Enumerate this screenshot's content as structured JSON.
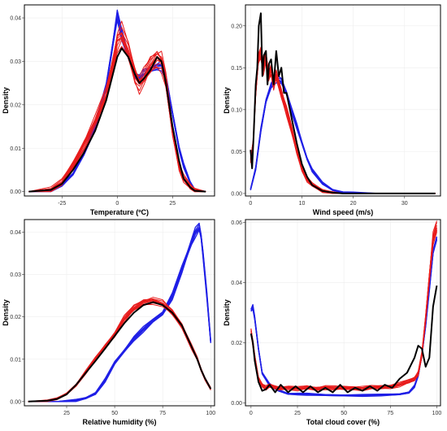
{
  "colors": {
    "blue": "#1f1fe6",
    "red": "#e81c1c",
    "black": "#000000"
  },
  "chart_data": [
    {
      "type": "line",
      "xlabel": "Temperature (ºC)",
      "ylabel": "Density",
      "xlim": [
        -42,
        44
      ],
      "ylim": [
        -0.001,
        0.043
      ],
      "xticks": [
        -25,
        0,
        25
      ],
      "yticks": [
        0.0,
        0.01,
        0.02,
        0.03,
        0.04
      ],
      "ytick_labels": [
        "0.00",
        "0.01",
        "0.02",
        "0.03",
        "0.04"
      ],
      "series": [
        {
          "color": "blue",
          "count": 6,
          "spread": 0.0012,
          "x": [
            -40,
            -30,
            -25,
            -20,
            -15,
            -10,
            -5,
            -2,
            0,
            2,
            5,
            8,
            10,
            12,
            15,
            18,
            20,
            22,
            25,
            28,
            30,
            33,
            35,
            40
          ],
          "y": [
            0,
            0.0003,
            0.0015,
            0.004,
            0.009,
            0.015,
            0.024,
            0.034,
            0.041,
            0.036,
            0.031,
            0.027,
            0.026,
            0.027,
            0.028,
            0.029,
            0.029,
            0.026,
            0.018,
            0.01,
            0.006,
            0.002,
            0.0005,
            0
          ]
        },
        {
          "color": "red",
          "count": 12,
          "spread": 0.0025,
          "x": [
            -40,
            -30,
            -25,
            -20,
            -15,
            -10,
            -5,
            -2,
            0,
            2,
            5,
            8,
            10,
            12,
            15,
            18,
            20,
            22,
            25,
            28,
            30,
            33,
            35,
            40
          ],
          "y": [
            0,
            0.0005,
            0.002,
            0.006,
            0.011,
            0.016,
            0.022,
            0.029,
            0.035,
            0.036,
            0.032,
            0.027,
            0.025,
            0.026,
            0.029,
            0.031,
            0.03,
            0.025,
            0.014,
            0.006,
            0.003,
            0.001,
            0.0003,
            0
          ]
        },
        {
          "color": "black",
          "count": 1,
          "spread": 0,
          "x": [
            -40,
            -30,
            -25,
            -20,
            -15,
            -10,
            -5,
            -2,
            0,
            2,
            5,
            8,
            10,
            12,
            15,
            18,
            20,
            22,
            25,
            28,
            30,
            33,
            35,
            40
          ],
          "y": [
            0,
            0.0004,
            0.0018,
            0.005,
            0.009,
            0.014,
            0.021,
            0.027,
            0.031,
            0.033,
            0.031,
            0.027,
            0.025,
            0.026,
            0.028,
            0.031,
            0.03,
            0.025,
            0.015,
            0.007,
            0.003,
            0.001,
            0.0002,
            0
          ]
        }
      ]
    },
    {
      "type": "line",
      "xlabel": "Wind speed (m/s)",
      "ylabel": "Density",
      "xlim": [
        -1,
        37
      ],
      "ylim": [
        -0.003,
        0.225
      ],
      "xticks": [
        0,
        10,
        20,
        30
      ],
      "yticks": [
        0.0,
        0.05,
        0.1,
        0.15,
        0.2
      ],
      "ytick_labels": [
        "0.00",
        "0.05",
        "0.10",
        "0.15",
        "0.20"
      ],
      "series": [
        {
          "color": "blue",
          "count": 6,
          "spread": 0.004,
          "x": [
            0,
            1,
            2,
            3,
            4,
            5,
            6,
            7,
            8,
            9,
            10,
            11,
            12,
            14,
            16,
            18,
            20,
            25,
            30,
            36
          ],
          "y": [
            0.005,
            0.03,
            0.075,
            0.11,
            0.13,
            0.137,
            0.133,
            0.12,
            0.1,
            0.08,
            0.06,
            0.042,
            0.028,
            0.012,
            0.004,
            0.0015,
            0.0005,
            0,
            0,
            0
          ]
        },
        {
          "color": "red",
          "count": 12,
          "spread": 0.008,
          "x": [
            0,
            0.5,
            1,
            1.5,
            2,
            2.5,
            3,
            3.5,
            4,
            4.5,
            5,
            6,
            7,
            8,
            9,
            10,
            11,
            12,
            14,
            16,
            18,
            20,
            25,
            30,
            36
          ],
          "y": [
            0.04,
            0.06,
            0.12,
            0.16,
            0.17,
            0.15,
            0.16,
            0.14,
            0.15,
            0.13,
            0.14,
            0.12,
            0.1,
            0.075,
            0.05,
            0.03,
            0.017,
            0.01,
            0.003,
            0.001,
            0,
            0,
            0,
            0,
            0
          ]
        },
        {
          "color": "black",
          "count": 1,
          "spread": 0,
          "x": [
            0,
            0.3,
            0.6,
            1,
            1.3,
            1.6,
            2,
            2.3,
            2.6,
            3,
            3.3,
            3.6,
            4,
            4.5,
            5,
            5.5,
            6,
            6.5,
            7,
            8,
            9,
            10,
            11,
            12,
            14,
            16,
            18,
            20,
            25,
            30,
            36
          ],
          "y": [
            0.052,
            0.03,
            0.07,
            0.13,
            0.15,
            0.2,
            0.215,
            0.14,
            0.165,
            0.17,
            0.13,
            0.155,
            0.16,
            0.13,
            0.17,
            0.14,
            0.15,
            0.12,
            0.12,
            0.09,
            0.06,
            0.035,
            0.02,
            0.01,
            0.003,
            0.001,
            0,
            0,
            0,
            0,
            0
          ]
        }
      ]
    },
    {
      "type": "line",
      "xlabel": "Relative humidity (%)",
      "ylabel": "Density",
      "xlim": [
        3,
        102
      ],
      "ylim": [
        -0.001,
        0.043
      ],
      "xticks": [
        25,
        50,
        75,
        100
      ],
      "yticks": [
        0.0,
        0.01,
        0.02,
        0.03,
        0.04
      ],
      "ytick_labels": [
        "0.00",
        "0.01",
        "0.02",
        "0.03",
        "0.04"
      ],
      "series": [
        {
          "color": "blue",
          "count": 6,
          "spread": 0.001,
          "x": [
            5,
            20,
            30,
            35,
            40,
            45,
            50,
            55,
            60,
            65,
            70,
            75,
            80,
            85,
            88,
            90,
            92,
            94,
            95,
            96,
            98,
            100
          ],
          "y": [
            0,
            0,
            0.0002,
            0.0008,
            0.002,
            0.005,
            0.009,
            0.012,
            0.015,
            0.017,
            0.019,
            0.021,
            0.025,
            0.031,
            0.035,
            0.038,
            0.04,
            0.041,
            0.039,
            0.035,
            0.025,
            0.014
          ]
        },
        {
          "color": "red",
          "count": 12,
          "spread": 0.0008,
          "x": [
            5,
            15,
            20,
            25,
            30,
            35,
            40,
            45,
            50,
            55,
            60,
            65,
            70,
            75,
            80,
            85,
            90,
            93,
            95,
            97,
            100
          ],
          "y": [
            0,
            0.0002,
            0.0006,
            0.0018,
            0.004,
            0.007,
            0.01,
            0.013,
            0.016,
            0.0195,
            0.022,
            0.0235,
            0.024,
            0.023,
            0.021,
            0.018,
            0.013,
            0.01,
            0.0075,
            0.0055,
            0.003
          ]
        },
        {
          "color": "black",
          "count": 1,
          "spread": 0,
          "x": [
            5,
            15,
            20,
            25,
            30,
            35,
            40,
            45,
            50,
            55,
            60,
            65,
            70,
            75,
            80,
            85,
            90,
            93,
            95,
            97,
            100
          ],
          "y": [
            0,
            0.0002,
            0.0006,
            0.0017,
            0.004,
            0.0068,
            0.0096,
            0.0125,
            0.0155,
            0.0185,
            0.021,
            0.0228,
            0.0235,
            0.0228,
            0.021,
            0.018,
            0.013,
            0.01,
            0.0075,
            0.0055,
            0.003
          ]
        }
      ]
    },
    {
      "type": "line",
      "xlabel": "Total cloud cover (%)",
      "ylabel": "Density",
      "xlim": [
        -3,
        102
      ],
      "ylim": [
        -0.001,
        0.061
      ],
      "xticks": [
        0,
        25,
        50,
        75,
        100
      ],
      "yticks": [
        0.0,
        0.02,
        0.04,
        0.06
      ],
      "ytick_labels": [
        "0.00",
        "0.02",
        "0.04",
        "0.06"
      ],
      "series": [
        {
          "color": "blue",
          "count": 6,
          "spread": 0.001,
          "x": [
            0,
            1,
            2,
            4,
            6,
            10,
            15,
            20,
            25,
            30,
            40,
            50,
            60,
            70,
            80,
            85,
            88,
            90,
            92,
            94,
            96,
            98,
            100
          ],
          "y": [
            0.031,
            0.032,
            0.028,
            0.018,
            0.01,
            0.006,
            0.004,
            0.003,
            0.003,
            0.0028,
            0.0025,
            0.0025,
            0.0025,
            0.0025,
            0.0028,
            0.0035,
            0.0055,
            0.009,
            0.016,
            0.026,
            0.038,
            0.05,
            0.055
          ]
        },
        {
          "color": "red",
          "count": 12,
          "spread": 0.002,
          "x": [
            0,
            1,
            2,
            4,
            6,
            8,
            10,
            15,
            20,
            25,
            30,
            35,
            40,
            45,
            50,
            55,
            60,
            65,
            70,
            75,
            80,
            85,
            88,
            90,
            92,
            94,
            96,
            98,
            100
          ],
          "y": [
            0.024,
            0.02,
            0.015,
            0.008,
            0.006,
            0.005,
            0.0055,
            0.0048,
            0.0052,
            0.0046,
            0.005,
            0.0047,
            0.0052,
            0.0048,
            0.0049,
            0.005,
            0.0048,
            0.005,
            0.0052,
            0.0055,
            0.006,
            0.007,
            0.008,
            0.01,
            0.016,
            0.028,
            0.042,
            0.055,
            0.058
          ]
        },
        {
          "color": "black",
          "count": 1,
          "spread": 0,
          "x": [
            0,
            1,
            2,
            4,
            6,
            8,
            10,
            13,
            16,
            20,
            24,
            28,
            32,
            36,
            40,
            44,
            48,
            52,
            56,
            60,
            64,
            68,
            72,
            76,
            80,
            84,
            88,
            90,
            92,
            94,
            96,
            98,
            100
          ],
          "y": [
            0.023,
            0.02,
            0.014,
            0.007,
            0.004,
            0.0045,
            0.006,
            0.0035,
            0.006,
            0.0035,
            0.0055,
            0.0035,
            0.0055,
            0.0035,
            0.005,
            0.0035,
            0.006,
            0.0035,
            0.005,
            0.004,
            0.0055,
            0.004,
            0.006,
            0.005,
            0.008,
            0.01,
            0.015,
            0.019,
            0.018,
            0.012,
            0.015,
            0.032,
            0.039
          ]
        }
      ]
    }
  ]
}
